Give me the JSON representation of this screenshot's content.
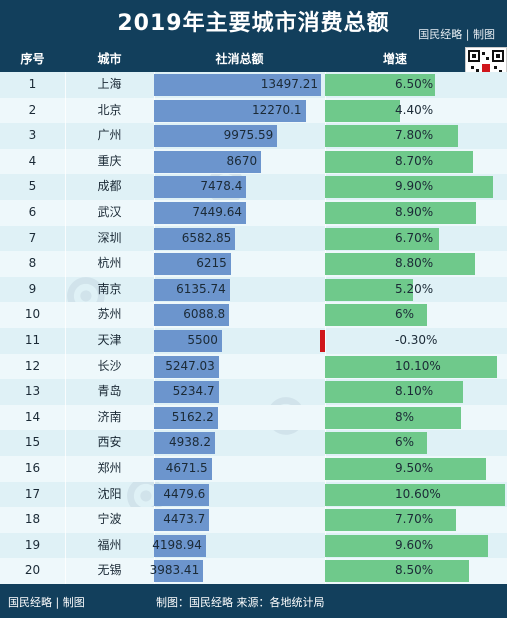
{
  "header": {
    "title": "2019年主要城市消费总额",
    "brand": "国民经略 | 制图"
  },
  "columns": {
    "rank": "序号",
    "city": "城市",
    "sales": "社消总额",
    "growth": "增速"
  },
  "chart_data": {
    "type": "table",
    "title": "2019年主要城市消费总额",
    "columns": [
      "序号",
      "城市",
      "社消总额",
      "增速"
    ],
    "rows": [
      {
        "rank": "1",
        "city": "上海",
        "sales": 13497.21,
        "sales_label": "13497.21",
        "growth": 6.5,
        "growth_label": "6.50%"
      },
      {
        "rank": "2",
        "city": "北京",
        "sales": 12270.1,
        "sales_label": "12270.1",
        "growth": 4.4,
        "growth_label": "4.40%"
      },
      {
        "rank": "3",
        "city": "广州",
        "sales": 9975.59,
        "sales_label": "9975.59",
        "growth": 7.8,
        "growth_label": "7.80%"
      },
      {
        "rank": "4",
        "city": "重庆",
        "sales": 8670,
        "sales_label": "8670",
        "growth": 8.7,
        "growth_label": "8.70%"
      },
      {
        "rank": "5",
        "city": "成都",
        "sales": 7478.4,
        "sales_label": "7478.4",
        "growth": 9.9,
        "growth_label": "9.90%"
      },
      {
        "rank": "6",
        "city": "武汉",
        "sales": 7449.64,
        "sales_label": "7449.64",
        "growth": 8.9,
        "growth_label": "8.90%"
      },
      {
        "rank": "7",
        "city": "深圳",
        "sales": 6582.85,
        "sales_label": "6582.85",
        "growth": 6.7,
        "growth_label": "6.70%"
      },
      {
        "rank": "8",
        "city": "杭州",
        "sales": 6215,
        "sales_label": "6215",
        "growth": 8.8,
        "growth_label": "8.80%"
      },
      {
        "rank": "9",
        "city": "南京",
        "sales": 6135.74,
        "sales_label": "6135.74",
        "growth": 5.2,
        "growth_label": "5.20%"
      },
      {
        "rank": "10",
        "city": "苏州",
        "sales": 6088.8,
        "sales_label": "6088.8",
        "growth": 6,
        "growth_label": "6%"
      },
      {
        "rank": "11",
        "city": "天津",
        "sales": 5500,
        "sales_label": "5500",
        "growth": -0.3,
        "growth_label": "-0.30%"
      },
      {
        "rank": "12",
        "city": "长沙",
        "sales": 5247.03,
        "sales_label": "5247.03",
        "growth": 10.1,
        "growth_label": "10.10%"
      },
      {
        "rank": "13",
        "city": "青岛",
        "sales": 5234.7,
        "sales_label": "5234.7",
        "growth": 8.1,
        "growth_label": "8.10%"
      },
      {
        "rank": "14",
        "city": "济南",
        "sales": 5162.2,
        "sales_label": "5162.2",
        "growth": 8,
        "growth_label": "8%"
      },
      {
        "rank": "15",
        "city": "西安",
        "sales": 4938.2,
        "sales_label": "4938.2",
        "growth": 6,
        "growth_label": "6%"
      },
      {
        "rank": "16",
        "city": "郑州",
        "sales": 4671.5,
        "sales_label": "4671.5",
        "growth": 9.5,
        "growth_label": "9.50%"
      },
      {
        "rank": "17",
        "city": "沈阳",
        "sales": 4479.6,
        "sales_label": "4479.6",
        "growth": 10.6,
        "growth_label": "10.60%"
      },
      {
        "rank": "18",
        "city": "宁波",
        "sales": 4473.7,
        "sales_label": "4473.7",
        "growth": 7.7,
        "growth_label": "7.70%"
      },
      {
        "rank": "19",
        "city": "福州",
        "sales": 4198.94,
        "sales_label": "4198.94",
        "growth": 9.6,
        "growth_label": "9.60%"
      },
      {
        "rank": "20",
        "city": "无锡",
        "sales": 3983.41,
        "sales_label": "3983.41",
        "growth": 8.5,
        "growth_label": "8.50%"
      }
    ],
    "colors": {
      "sales_bar": "#6c95cd",
      "growth_bar": "#6fc98b",
      "negative_bar": "#d0161b",
      "header_bg": "#123f5c"
    }
  },
  "footer": {
    "brand": "国民经略 | 制图",
    "credit": "制图：国民经略 来源：各地统计局"
  }
}
